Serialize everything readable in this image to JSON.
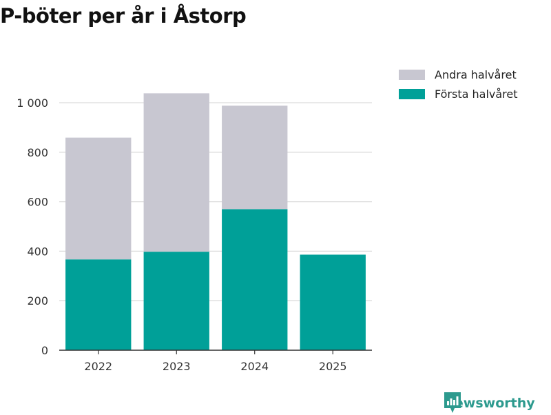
{
  "chart_data": {
    "type": "bar",
    "stacked": true,
    "title": "P-böter per år i Åstorp",
    "categories": [
      "2022",
      "2023",
      "2024",
      "2025"
    ],
    "series": [
      {
        "name": "Första halvåret",
        "color": "#00a098",
        "values": [
          367,
          398,
          570,
          386
        ]
      },
      {
        "name": "Andra halvåret",
        "color": "#c8c7d1",
        "values": [
          492,
          640,
          418,
          0
        ]
      }
    ],
    "legend_order": [
      "Andra halvåret",
      "Första halvåret"
    ],
    "legend_position": "top-right",
    "ylim": [
      0,
      1000
    ],
    "yticks": [
      0,
      200,
      400,
      600,
      800,
      1000
    ],
    "ytick_labels": [
      "0",
      "200",
      "400",
      "600",
      "800",
      "1 000"
    ],
    "grid": true,
    "xlabel": "",
    "ylabel": ""
  },
  "brand": {
    "name": "Newsworthy",
    "icon": "newsworthy-logo-icon",
    "color": "#2d9a8e"
  }
}
